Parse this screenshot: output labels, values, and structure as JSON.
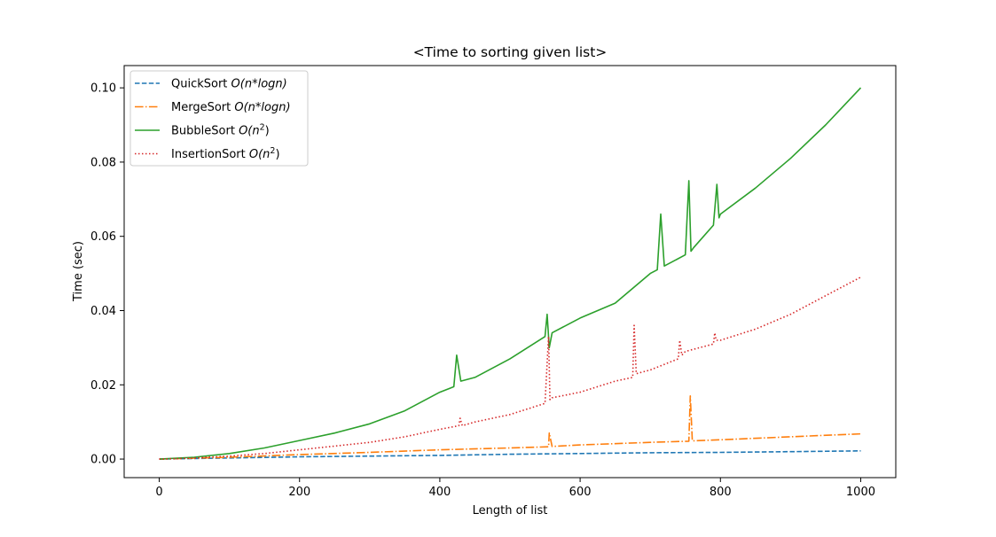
{
  "chart_data": {
    "type": "line",
    "title": "<Time to sorting given list>",
    "xlabel": "Length of list",
    "ylabel": "Time (sec)",
    "xlim": [
      -50,
      1050
    ],
    "ylim": [
      -0.005,
      0.106
    ],
    "xticks": [
      0,
      200,
      400,
      600,
      800,
      1000
    ],
    "xtick_labels": [
      "0",
      "200",
      "400",
      "600",
      "800",
      "1000"
    ],
    "yticks": [
      0.0,
      0.02,
      0.04,
      0.06,
      0.08,
      0.1
    ],
    "ytick_labels": [
      "0.00",
      "0.02",
      "0.04",
      "0.06",
      "0.08",
      "0.10"
    ],
    "grid": false,
    "legend_position": "top-left",
    "series": [
      {
        "name": "QuickSort O(n*logn)",
        "legend_prefix": "QuickSort ",
        "legend_math": "O(n*logn)",
        "color": "#1f77b4",
        "style": "dashed",
        "x": [
          0,
          100,
          200,
          300,
          400,
          500,
          600,
          700,
          800,
          900,
          1000
        ],
        "y": [
          0.0,
          0.0003,
          0.0006,
          0.0008,
          0.001,
          0.0013,
          0.0015,
          0.0017,
          0.0018,
          0.002,
          0.0022
        ]
      },
      {
        "name": "MergeSort O(n*logn)",
        "legend_prefix": "MergeSort ",
        "legend_math": "O(n*logn)",
        "color": "#ff7f0e",
        "style": "dashdot",
        "x": [
          0,
          100,
          200,
          300,
          400,
          500,
          555,
          556,
          560,
          600,
          700,
          755,
          757,
          760,
          800,
          900,
          1000
        ],
        "y": [
          0.0,
          0.0005,
          0.0012,
          0.0018,
          0.0025,
          0.003,
          0.0033,
          0.007,
          0.0034,
          0.0038,
          0.0045,
          0.0048,
          0.017,
          0.0049,
          0.0052,
          0.006,
          0.0068
        ]
      },
      {
        "name": "BubbleSort O(n^2)",
        "legend_prefix": "BubbleSort ",
        "legend_math": "O(n2)",
        "color": "#2ca02c",
        "style": "solid",
        "x": [
          0,
          50,
          100,
          150,
          200,
          250,
          300,
          350,
          400,
          420,
          424,
          430,
          450,
          500,
          550,
          553,
          556,
          560,
          600,
          650,
          700,
          710,
          715,
          720,
          750,
          755,
          758,
          762,
          790,
          795,
          798,
          800,
          850,
          900,
          950,
          1000
        ],
        "y": [
          0.0,
          0.0005,
          0.0015,
          0.003,
          0.005,
          0.007,
          0.0095,
          0.013,
          0.018,
          0.0195,
          0.028,
          0.021,
          0.022,
          0.027,
          0.033,
          0.039,
          0.03,
          0.034,
          0.038,
          0.042,
          0.05,
          0.051,
          0.066,
          0.052,
          0.055,
          0.075,
          0.056,
          0.057,
          0.063,
          0.074,
          0.065,
          0.066,
          0.073,
          0.081,
          0.09,
          0.1
        ]
      },
      {
        "name": "InsertionSort O(n^2)",
        "legend_prefix": "InsertionSort ",
        "legend_math": "O(n2)",
        "color": "#d62728",
        "style": "dotted",
        "x": [
          0,
          50,
          100,
          150,
          200,
          250,
          300,
          350,
          400,
          427,
          429,
          432,
          450,
          500,
          550,
          555,
          557,
          560,
          600,
          650,
          675,
          677,
          680,
          700,
          740,
          742,
          745,
          750,
          790,
          792,
          794,
          800,
          850,
          900,
          950,
          1000
        ],
        "y": [
          0.0,
          0.0003,
          0.0008,
          0.0015,
          0.0025,
          0.0035,
          0.0045,
          0.006,
          0.008,
          0.009,
          0.011,
          0.009,
          0.01,
          0.012,
          0.015,
          0.033,
          0.016,
          0.0165,
          0.018,
          0.021,
          0.022,
          0.036,
          0.023,
          0.024,
          0.027,
          0.032,
          0.028,
          0.029,
          0.031,
          0.034,
          0.032,
          0.032,
          0.035,
          0.039,
          0.044,
          0.049
        ]
      }
    ]
  }
}
